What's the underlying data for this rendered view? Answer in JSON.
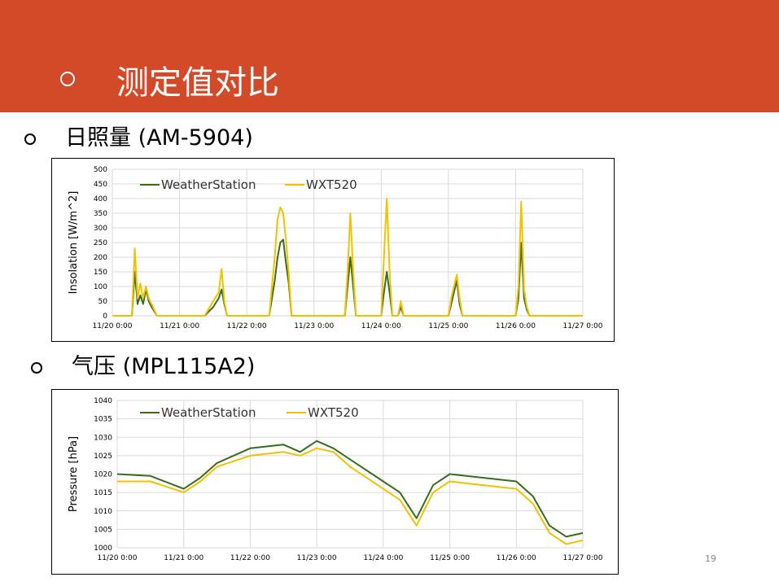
{
  "header": {
    "title": "测定值对比"
  },
  "sections": [
    {
      "label": "日照量 (AM-5904)"
    },
    {
      "label": "气压 (MPL115A2)"
    }
  ],
  "page_number": "19",
  "colors": {
    "header_bg": "#d24a27",
    "weather_station": "#3b6b1e",
    "wxt520": "#f2c200",
    "grid": "#d9d9d9"
  },
  "chart_data": [
    {
      "type": "line",
      "title": "",
      "xlabel": "",
      "ylabel": "Insolation [W/m^2]",
      "ylim": [
        0,
        500
      ],
      "yticks": [
        0,
        50,
        100,
        150,
        200,
        250,
        300,
        350,
        400,
        450,
        500
      ],
      "xlim": [
        "11/20 0:00",
        "11/27 0:00"
      ],
      "xticks": [
        "11/20 0:00",
        "11/21 0:00",
        "11/22 0:00",
        "11/23 0:00",
        "11/24 0:00",
        "11/25 0:00",
        "11/26 0:00",
        "11/27 0:00"
      ],
      "grid": true,
      "legend": "top-left",
      "series": [
        {
          "name": "WeatherStation",
          "color": "#3b6b1e",
          "points": [
            [
              "11/20 0:00",
              0
            ],
            [
              "11/20 7:00",
              0
            ],
            [
              "11/20 8:00",
              150
            ],
            [
              "11/20 9:00",
              40
            ],
            [
              "11/20 10:00",
              70
            ],
            [
              "11/20 11:00",
              40
            ],
            [
              "11/20 12:00",
              90
            ],
            [
              "11/20 13:00",
              50
            ],
            [
              "11/20 14:00",
              30
            ],
            [
              "11/20 16:00",
              0
            ],
            [
              "11/21 9:00",
              0
            ],
            [
              "11/21 12:00",
              30
            ],
            [
              "11/21 14:00",
              60
            ],
            [
              "11/21 15:00",
              90
            ],
            [
              "11/21 16:00",
              40
            ],
            [
              "11/21 17:00",
              0
            ],
            [
              "11/22 8:00",
              0
            ],
            [
              "11/22 10:00",
              120
            ],
            [
              "11/22 11:00",
              200
            ],
            [
              "11/22 12:00",
              250
            ],
            [
              "11/22 13:00",
              260
            ],
            [
              "11/22 14:00",
              180
            ],
            [
              "11/22 15:00",
              110
            ],
            [
              "11/22 16:00",
              0
            ],
            [
              "11/23 11:00",
              0
            ],
            [
              "11/23 12:00",
              100
            ],
            [
              "11/23 13:00",
              200
            ],
            [
              "11/23 14:00",
              100
            ],
            [
              "11/23 15:00",
              0
            ],
            [
              "11/24 0:00",
              0
            ],
            [
              "11/24 1:00",
              80
            ],
            [
              "11/24 2:00",
              150
            ],
            [
              "11/24 3:00",
              80
            ],
            [
              "11/24 4:00",
              0
            ],
            [
              "11/24 6:00",
              0
            ],
            [
              "11/24 7:00",
              30
            ],
            [
              "11/24 8:00",
              0
            ],
            [
              "11/25 0:00",
              0
            ],
            [
              "11/25 1:00",
              40
            ],
            [
              "11/25 2:00",
              80
            ],
            [
              "11/25 3:00",
              120
            ],
            [
              "11/25 4:00",
              40
            ],
            [
              "11/25 5:00",
              0
            ],
            [
              "11/26 0:00",
              0
            ],
            [
              "11/26 1:00",
              60
            ],
            [
              "11/26 2:00",
              250
            ],
            [
              "11/26 3:00",
              60
            ],
            [
              "11/26 4:00",
              20
            ],
            [
              "11/26 5:00",
              0
            ],
            [
              "11/27 0:00",
              0
            ]
          ]
        },
        {
          "name": "WXT520",
          "color": "#f2c200",
          "points": [
            [
              "11/20 0:00",
              0
            ],
            [
              "11/20 7:00",
              0
            ],
            [
              "11/20 8:00",
              230
            ],
            [
              "11/20 9:00",
              60
            ],
            [
              "11/20 10:00",
              110
            ],
            [
              "11/20 11:00",
              60
            ],
            [
              "11/20 12:00",
              100
            ],
            [
              "11/20 13:00",
              60
            ],
            [
              "11/20 14:00",
              40
            ],
            [
              "11/20 16:00",
              0
            ],
            [
              "11/21 9:00",
              0
            ],
            [
              "11/21 12:00",
              50
            ],
            [
              "11/21 14:00",
              80
            ],
            [
              "11/21 15:00",
              160
            ],
            [
              "11/21 16:00",
              50
            ],
            [
              "11/21 17:00",
              0
            ],
            [
              "11/22 8:00",
              0
            ],
            [
              "11/22 10:00",
              200
            ],
            [
              "11/22 11:00",
              330
            ],
            [
              "11/22 12:00",
              370
            ],
            [
              "11/22 13:00",
              350
            ],
            [
              "11/22 14:00",
              260
            ],
            [
              "11/22 15:00",
              140
            ],
            [
              "11/22 16:00",
              0
            ],
            [
              "11/23 11:00",
              0
            ],
            [
              "11/23 12:00",
              150
            ],
            [
              "11/23 13:00",
              350
            ],
            [
              "11/23 14:00",
              150
            ],
            [
              "11/23 15:00",
              0
            ],
            [
              "11/24 0:00",
              0
            ],
            [
              "11/24 1:00",
              200
            ],
            [
              "11/24 2:00",
              400
            ],
            [
              "11/24 3:00",
              150
            ],
            [
              "11/24 4:00",
              0
            ],
            [
              "11/24 6:00",
              0
            ],
            [
              "11/24 7:00",
              50
            ],
            [
              "11/24 8:00",
              0
            ],
            [
              "11/25 0:00",
              0
            ],
            [
              "11/25 1:00",
              60
            ],
            [
              "11/25 2:00",
              100
            ],
            [
              "11/25 3:00",
              140
            ],
            [
              "11/25 4:00",
              60
            ],
            [
              "11/25 5:00",
              0
            ],
            [
              "11/26 0:00",
              0
            ],
            [
              "11/26 1:00",
              100
            ],
            [
              "11/26 2:00",
              390
            ],
            [
              "11/26 3:00",
              90
            ],
            [
              "11/26 4:00",
              30
            ],
            [
              "11/26 5:00",
              0
            ],
            [
              "11/27 0:00",
              0
            ]
          ]
        }
      ]
    },
    {
      "type": "line",
      "title": "",
      "xlabel": "",
      "ylabel": "Pressure [hPa]",
      "ylim": [
        1000,
        1040
      ],
      "yticks": [
        1000,
        1005,
        1010,
        1015,
        1020,
        1025,
        1030,
        1035,
        1040
      ],
      "xlim": [
        "11/20 0:00",
        "11/27 0:00"
      ],
      "xticks": [
        "11/20 0:00",
        "11/21 0:00",
        "11/22 0:00",
        "11/23 0:00",
        "11/24 0:00",
        "11/25 0:00",
        "11/26 0:00",
        "11/27 0:00"
      ],
      "grid": true,
      "legend": "top-left",
      "series": [
        {
          "name": "WeatherStation",
          "color": "#3b6b1e",
          "points": [
            [
              "11/20 0:00",
              1020
            ],
            [
              "11/20 12:00",
              1019.5
            ],
            [
              "11/21 0:00",
              1016
            ],
            [
              "11/21 6:00",
              1019
            ],
            [
              "11/21 12:00",
              1023
            ],
            [
              "11/22 0:00",
              1027
            ],
            [
              "11/22 12:00",
              1028
            ],
            [
              "11/22 18:00",
              1026
            ],
            [
              "11/23 0:00",
              1029
            ],
            [
              "11/23 6:00",
              1027
            ],
            [
              "11/23 12:00",
              1024
            ],
            [
              "11/24 0:00",
              1018
            ],
            [
              "11/24 6:00",
              1015
            ],
            [
              "11/24 12:00",
              1008
            ],
            [
              "11/24 18:00",
              1017
            ],
            [
              "11/25 0:00",
              1020
            ],
            [
              "11/25 12:00",
              1019
            ],
            [
              "11/26 0:00",
              1018
            ],
            [
              "11/26 6:00",
              1014
            ],
            [
              "11/26 12:00",
              1006
            ],
            [
              "11/26 18:00",
              1003
            ],
            [
              "11/27 0:00",
              1004
            ]
          ]
        },
        {
          "name": "WXT520",
          "color": "#f2c200",
          "points": [
            [
              "11/20 0:00",
              1018
            ],
            [
              "11/20 12:00",
              1018
            ],
            [
              "11/21 0:00",
              1015
            ],
            [
              "11/21 6:00",
              1018
            ],
            [
              "11/21 12:00",
              1022
            ],
            [
              "11/22 0:00",
              1025
            ],
            [
              "11/22 12:00",
              1026
            ],
            [
              "11/22 18:00",
              1025
            ],
            [
              "11/23 0:00",
              1027
            ],
            [
              "11/23 6:00",
              1026
            ],
            [
              "11/23 12:00",
              1022
            ],
            [
              "11/24 0:00",
              1016
            ],
            [
              "11/24 6:00",
              1013
            ],
            [
              "11/24 12:00",
              1006
            ],
            [
              "11/24 18:00",
              1015
            ],
            [
              "11/25 0:00",
              1018
            ],
            [
              "11/25 12:00",
              1017
            ],
            [
              "11/26 0:00",
              1016
            ],
            [
              "11/26 6:00",
              1012
            ],
            [
              "11/26 12:00",
              1004
            ],
            [
              "11/26 18:00",
              1001
            ],
            [
              "11/27 0:00",
              1002
            ]
          ]
        }
      ]
    }
  ]
}
